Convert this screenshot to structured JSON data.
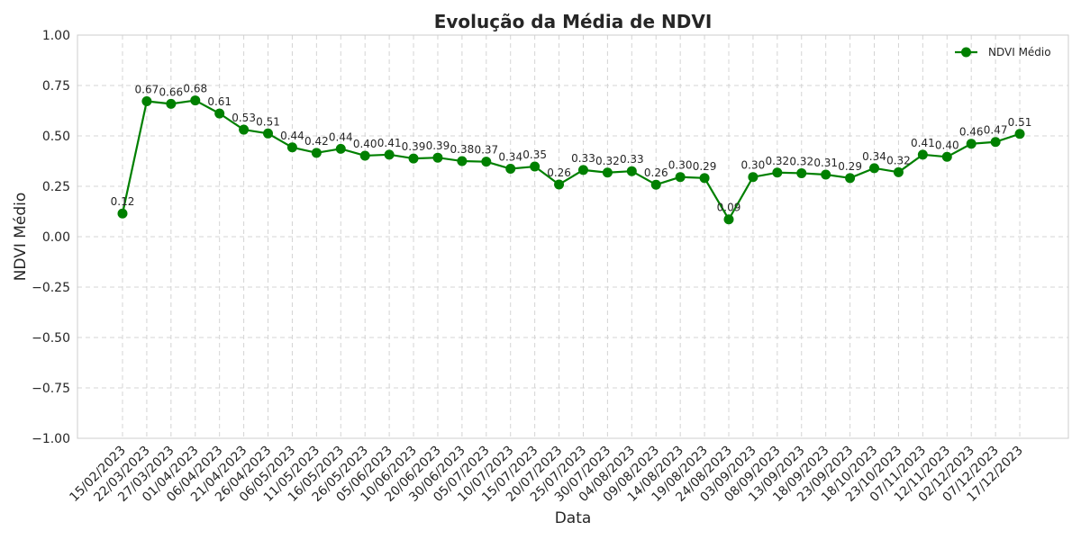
{
  "chart_data": {
    "type": "line",
    "title": "Evolução da Média de NDVI",
    "xlabel": "Data",
    "ylabel": "NDVI Médio",
    "ylim": [
      -1.0,
      1.0
    ],
    "yticks": [
      "−1.00",
      "−0.75",
      "−0.50",
      "−0.25",
      "0.00",
      "0.25",
      "0.50",
      "0.75",
      "1.00"
    ],
    "ytick_values": [
      -1.0,
      -0.75,
      -0.5,
      -0.25,
      0.0,
      0.25,
      0.5,
      0.75,
      1.0
    ],
    "grid": true,
    "legend_position": "top-right",
    "categories": [
      "15/02/2023",
      "22/03/2023",
      "27/03/2023",
      "01/04/2023",
      "06/04/2023",
      "21/04/2023",
      "26/04/2023",
      "06/05/2023",
      "11/05/2023",
      "16/05/2023",
      "26/05/2023",
      "05/06/2023",
      "10/06/2023",
      "20/06/2023",
      "30/06/2023",
      "05/07/2023",
      "10/07/2023",
      "15/07/2023",
      "20/07/2023",
      "25/07/2023",
      "30/07/2023",
      "04/08/2023",
      "09/08/2023",
      "14/08/2023",
      "19/08/2023",
      "24/08/2023",
      "03/09/2023",
      "08/09/2023",
      "13/09/2023",
      "18/09/2023",
      "23/09/2023",
      "18/10/2023",
      "23/10/2023",
      "07/11/2023",
      "12/11/2023",
      "02/12/2023",
      "07/12/2023",
      "17/12/2023"
    ],
    "series": [
      {
        "name": "NDVI Médio",
        "color": "#008000",
        "values": [
          0.115,
          0.672,
          0.659,
          0.676,
          0.611,
          0.531,
          0.512,
          0.443,
          0.416,
          0.436,
          0.402,
          0.407,
          0.388,
          0.392,
          0.375,
          0.372,
          0.337,
          0.348,
          0.259,
          0.331,
          0.318,
          0.325,
          0.258,
          0.296,
          0.291,
          0.086,
          0.296,
          0.318,
          0.315,
          0.308,
          0.291,
          0.34,
          0.32,
          0.407,
          0.396,
          0.461,
          0.47,
          0.51
        ],
        "labels": [
          "0.12",
          "0.67",
          "0.66",
          "0.68",
          "0.61",
          "0.53",
          "0.51",
          "0.44",
          "0.42",
          "0.44",
          "0.40",
          "0.41",
          "0.39",
          "0.39",
          "0.38",
          "0.37",
          "0.34",
          "0.35",
          "0.26",
          "0.33",
          "0.32",
          "0.33",
          "0.26",
          "0.30",
          "0.29",
          "0.09",
          "0.30",
          "0.32",
          "0.32",
          "0.31",
          "0.29",
          "0.34",
          "0.32",
          "0.41",
          "0.40",
          "0.46",
          "0.47",
          "0.51"
        ]
      }
    ]
  }
}
